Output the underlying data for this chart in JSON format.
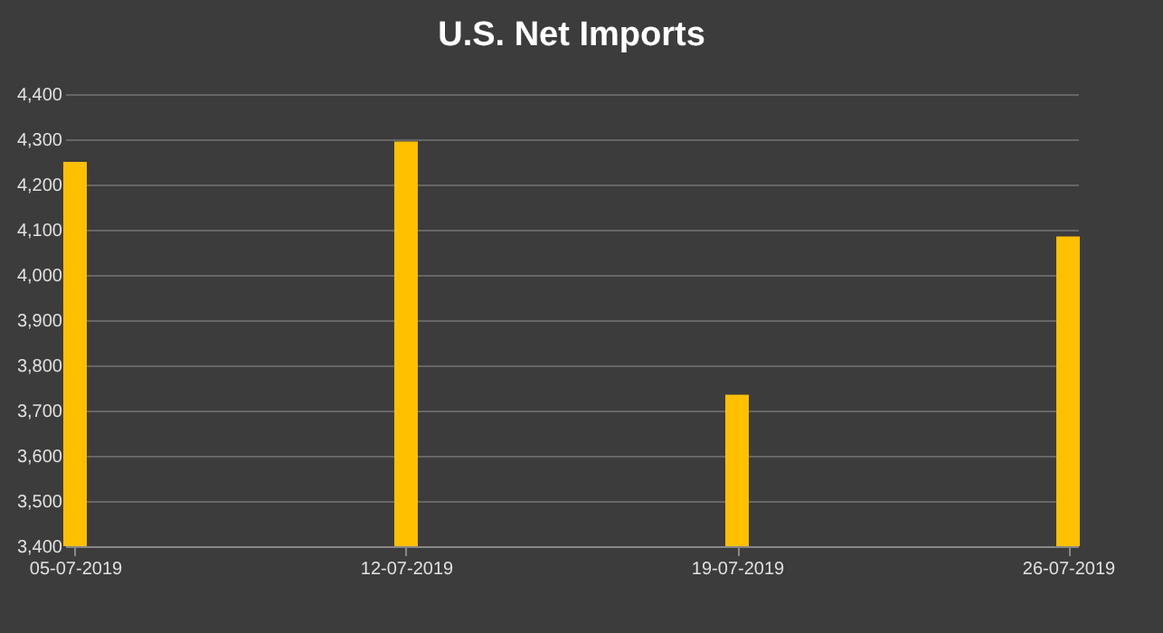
{
  "chart_data": {
    "type": "bar",
    "title": "U.S. Net Imports",
    "categories": [
      "05-07-2019",
      "12-07-2019",
      "19-07-2019",
      "26-07-2019"
    ],
    "values": [
      4250,
      4295,
      3735,
      4085
    ],
    "color": "#ffc000",
    "ylim": [
      3400,
      4400
    ],
    "yticks": [
      {
        "value": 3400,
        "label": "3,400"
      },
      {
        "value": 3500,
        "label": "3,500"
      },
      {
        "value": 3600,
        "label": "3,600"
      },
      {
        "value": 3700,
        "label": "3,700"
      },
      {
        "value": 3800,
        "label": "3,800"
      },
      {
        "value": 3900,
        "label": "3,900"
      },
      {
        "value": 4000,
        "label": "4,000"
      },
      {
        "value": 4100,
        "label": "4,100"
      },
      {
        "value": 4200,
        "label": "4,200"
      },
      {
        "value": 4300,
        "label": "4,300"
      },
      {
        "value": 4400,
        "label": "4,400"
      }
    ],
    "grid": "y"
  }
}
